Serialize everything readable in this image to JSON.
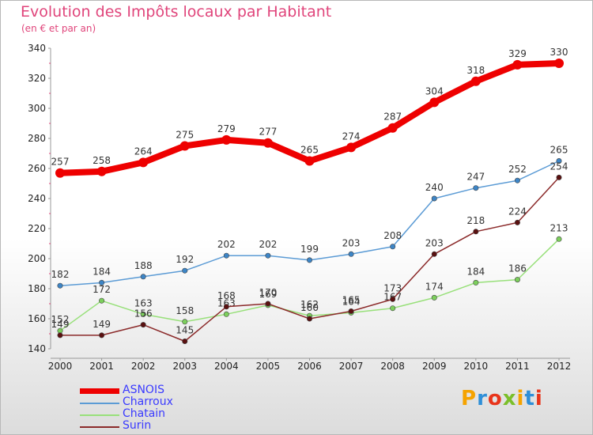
{
  "header": {
    "title": "Evolution des Impôts locaux par Habitant",
    "subtitle": "(en € et par an)"
  },
  "logo": {
    "text": "Proxiti",
    "colors": [
      "#f5a300",
      "#2f8fd8",
      "#e8351b",
      "#7bbf2a",
      "#f5a300",
      "#2f8fd8",
      "#e8351b"
    ]
  },
  "chart_data": {
    "type": "line",
    "title": "Evolution des Impôts locaux par Habitant",
    "subtitle": "(en € et par an)",
    "xlabel": "",
    "ylabel": "",
    "categories": [
      "2000",
      "2001",
      "2002",
      "2003",
      "2004",
      "2005",
      "2006",
      "2007",
      "2008",
      "2009",
      "2010",
      "2011",
      "2012"
    ],
    "ylim": [
      140,
      340
    ],
    "yticks": [
      140,
      160,
      180,
      200,
      220,
      240,
      260,
      280,
      300,
      320,
      340
    ],
    "grid": false,
    "legend_position": "bottom-left",
    "series": [
      {
        "name": "ASNOIS",
        "color": "#ee0000",
        "marker_color": "#ee0000",
        "thick": true,
        "values": [
          257,
          258,
          264,
          275,
          279,
          277,
          265,
          274,
          287,
          304,
          318,
          329,
          330
        ]
      },
      {
        "name": "Charroux",
        "color": "#5b9bd5",
        "marker_color": "#3d85c6",
        "thick": false,
        "values": [
          182,
          184,
          188,
          192,
          202,
          202,
          199,
          203,
          208,
          240,
          247,
          252,
          265
        ]
      },
      {
        "name": "Chatain",
        "color": "#98e07a",
        "marker_color": "#7ccf5c",
        "thick": false,
        "values": [
          152,
          172,
          163,
          158,
          163,
          169,
          162,
          164,
          167,
          174,
          184,
          186,
          213
        ]
      },
      {
        "name": "Surin",
        "color": "#8b2a2a",
        "marker_color": "#5a1010",
        "thick": false,
        "values": [
          149,
          149,
          156,
          145,
          168,
          170,
          160,
          165,
          173,
          203,
          218,
          224,
          254
        ]
      }
    ]
  }
}
